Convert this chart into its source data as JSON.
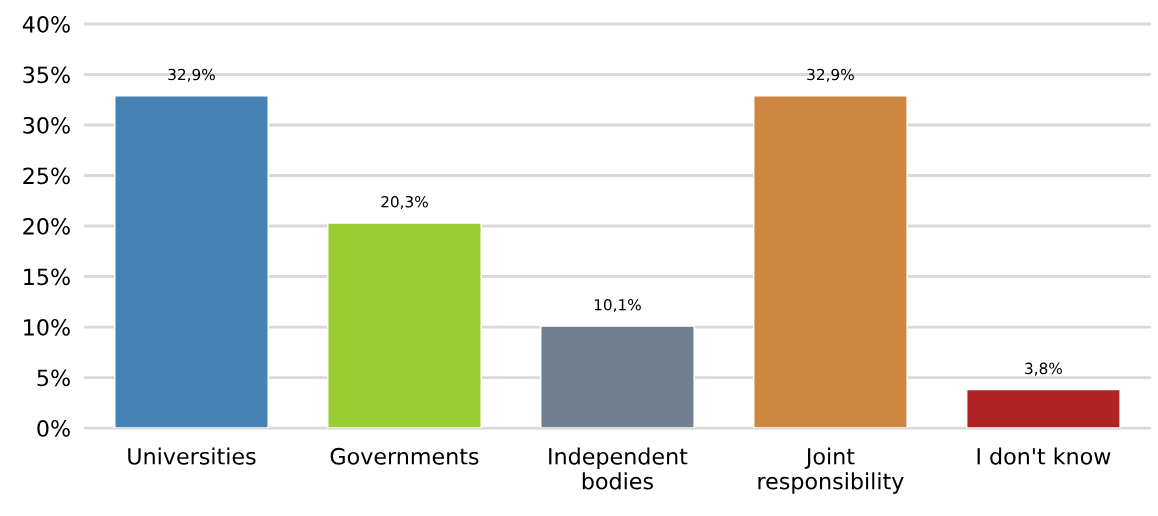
{
  "chart_data": {
    "type": "bar",
    "categories": [
      "Universities",
      "Governments",
      "Independent\nbodies",
      "Joint\nresponsibility",
      "I don't know"
    ],
    "values": [
      32.9,
      20.3,
      10.1,
      32.9,
      3.8
    ],
    "colors": [
      "#4682b4",
      "#9acd32",
      "#708090",
      "#cd853f",
      "#b22222"
    ],
    "value_labels": [
      "32,9%",
      "20,3%",
      "10,1%",
      "32,9%",
      "3,8%"
    ],
    "ylim": [
      0,
      40
    ],
    "yticks": [
      {
        "value": 0,
        "label": "0%"
      },
      {
        "value": 5,
        "label": "5%"
      },
      {
        "value": 10,
        "label": "10%"
      },
      {
        "value": 15,
        "label": "15%"
      },
      {
        "value": 20,
        "label": "20%"
      },
      {
        "value": 25,
        "label": "25%"
      },
      {
        "value": 30,
        "label": "30%"
      },
      {
        "value": 35,
        "label": "35%"
      },
      {
        "value": 40,
        "label": "40%"
      }
    ],
    "grid": "y"
  }
}
